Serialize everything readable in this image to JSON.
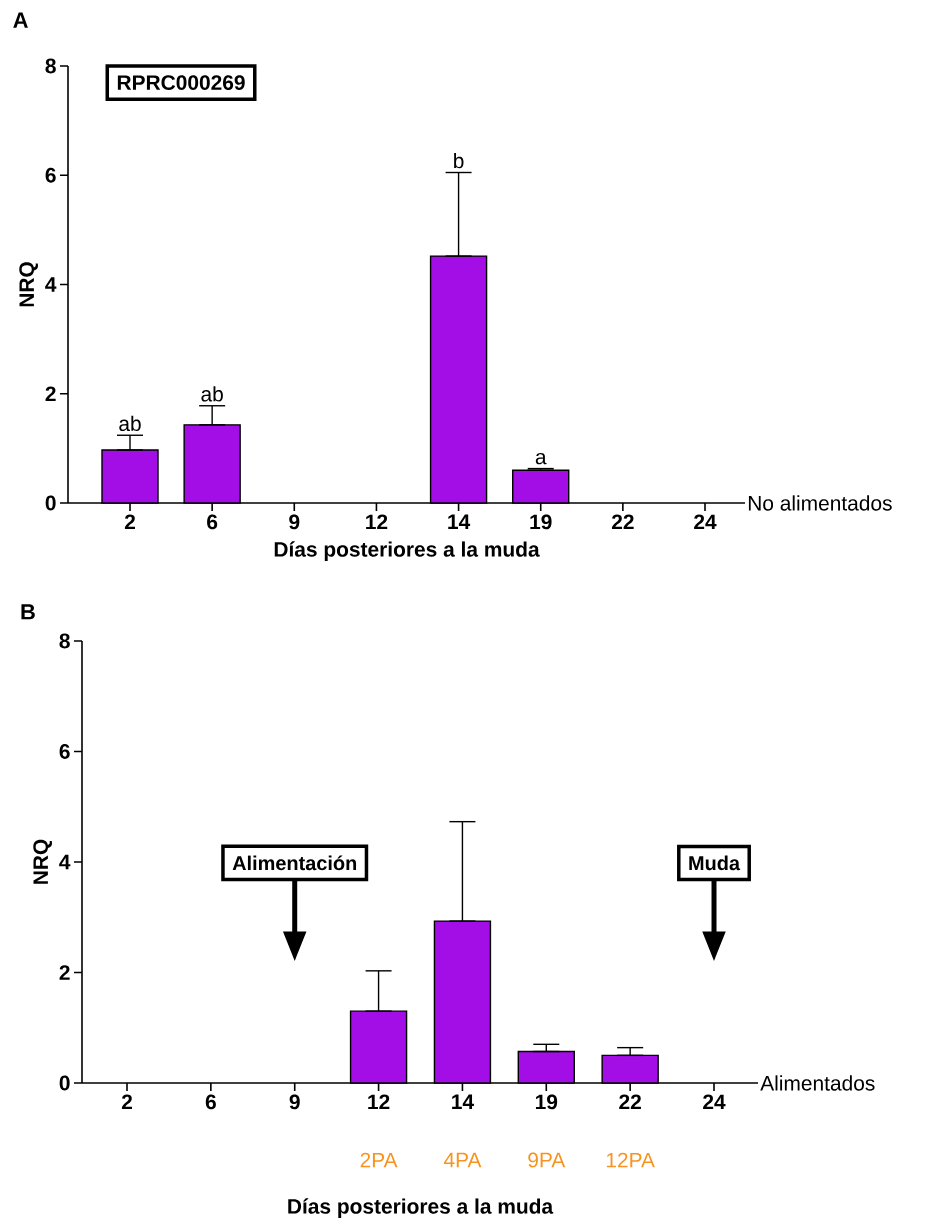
{
  "chart_data": [
    {
      "type": "bar",
      "title": "A",
      "ylabel": "NRQ",
      "xlabel": "Días posteriores a la muda",
      "categories": [
        "2",
        "6",
        "9",
        "12",
        "14",
        "19",
        "22",
        "24"
      ],
      "series": [
        {
          "name": "No alimentados",
          "color": "#a30ee6",
          "values": [
            0.97,
            1.43,
            null,
            null,
            4.52,
            0.6,
            null,
            null
          ],
          "errors": [
            [
              0.97,
              1.24
            ],
            [
              1.43,
              1.78
            ],
            null,
            null,
            [
              4.52,
              6.05
            ],
            [
              0.6,
              0.63
            ],
            null,
            null
          ]
        }
      ],
      "ylim": [
        0,
        8
      ],
      "yticks": [
        0,
        2,
        4,
        6,
        8
      ],
      "annotations": [
        "RPRC000269",
        "ab",
        "ab",
        "b",
        "a"
      ]
    },
    {
      "type": "bar",
      "title": "B",
      "ylabel": "NRQ",
      "xlabel": "Días posteriores a la muda",
      "categories": [
        "2",
        "6",
        "9",
        "12",
        "14",
        "19",
        "22",
        "24"
      ],
      "series": [
        {
          "name": "Alimentados",
          "color": "#a30ee6",
          "values": [
            null,
            null,
            null,
            1.3,
            2.93,
            0.57,
            0.5,
            null
          ],
          "errors": [
            null,
            null,
            null,
            [
              1.3,
              2.03
            ],
            [
              2.93,
              4.73
            ],
            [
              0.57,
              0.7
            ],
            [
              0.5,
              0.64
            ],
            null
          ]
        }
      ],
      "ylim": [
        0,
        8
      ],
      "yticks": [
        0,
        2,
        4,
        6,
        8
      ],
      "annotations": [
        "Alimentación",
        "Muda",
        "2PA",
        "4PA",
        "9PA",
        "12PA"
      ]
    }
  ]
}
